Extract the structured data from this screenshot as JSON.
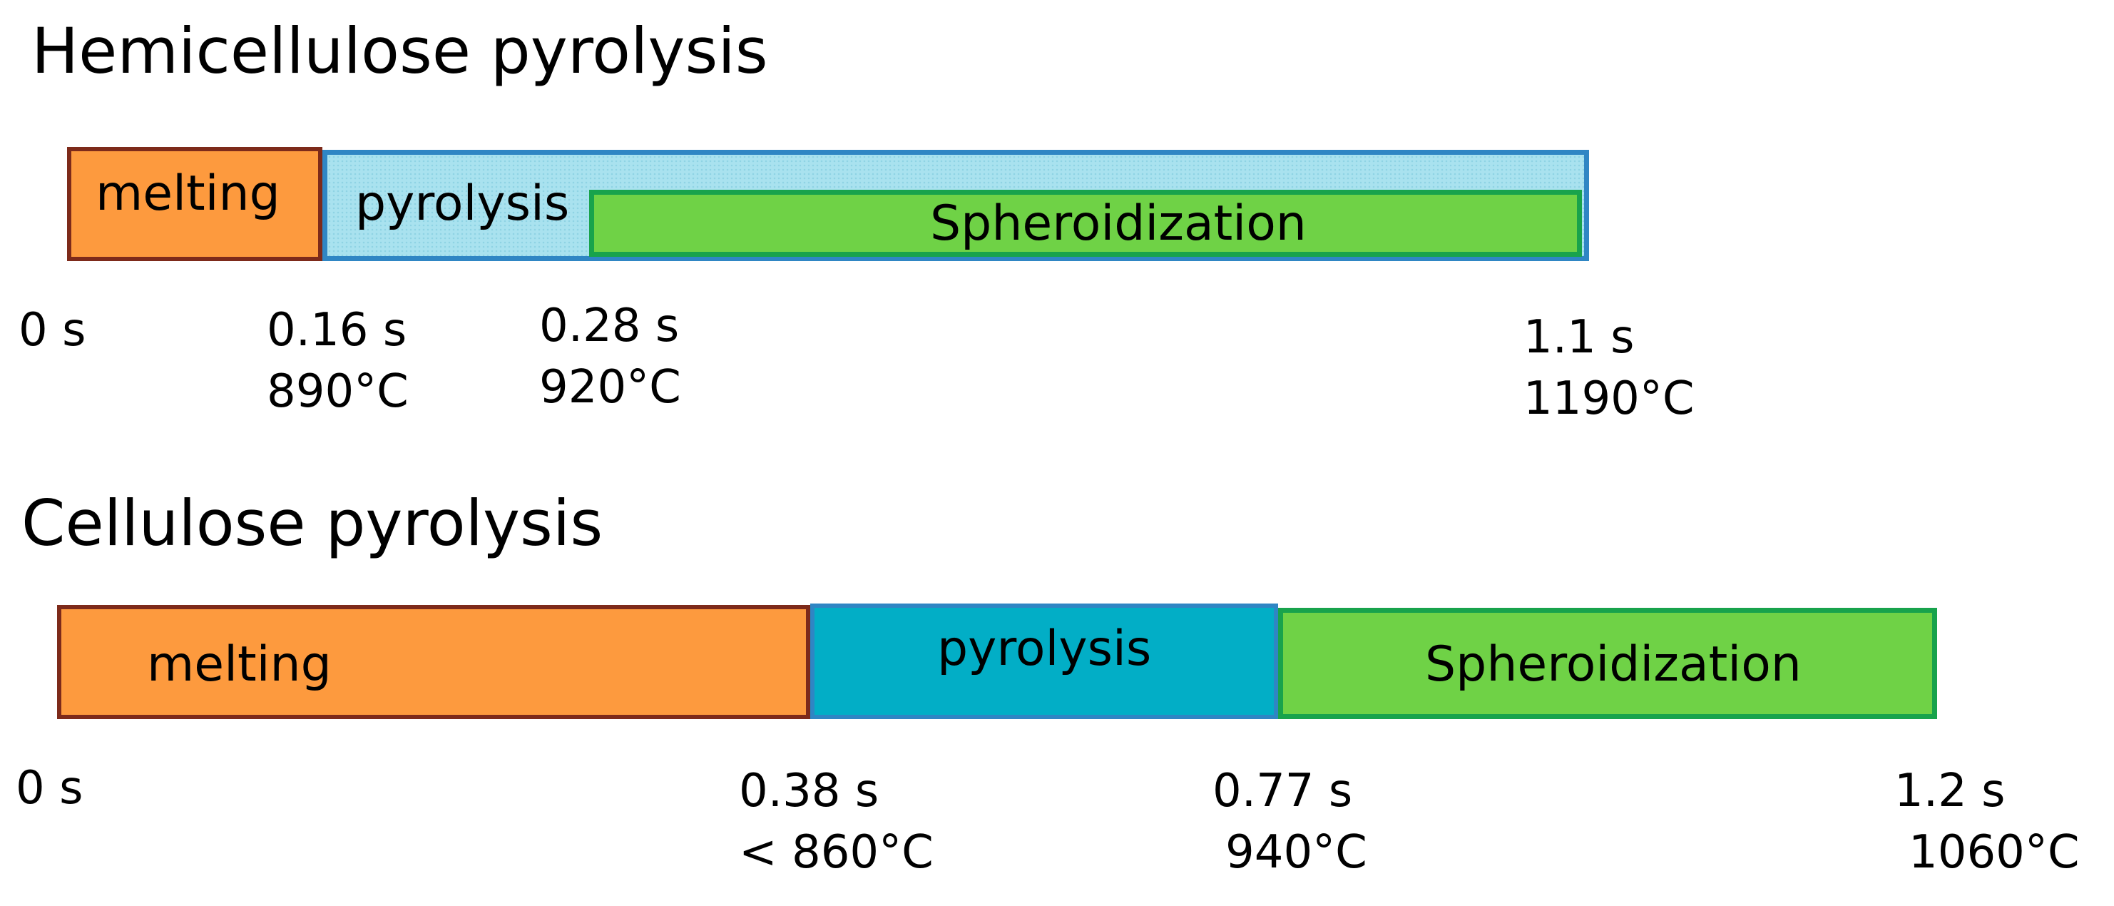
{
  "hemicellulose": {
    "title": "Hemicellulose pyrolysis",
    "phases": {
      "melting": "melting",
      "pyrolysis": "pyrolysis",
      "spheroidization": "Spheroidization"
    },
    "ticks": [
      {
        "time": "0 s",
        "temp": ""
      },
      {
        "time": "0.16 s",
        "temp": "890°C"
      },
      {
        "time": "0.28 s",
        "temp": "920°C"
      },
      {
        "time": "1.1 s",
        "temp": "1190°C"
      }
    ]
  },
  "cellulose": {
    "title": "Cellulose pyrolysis",
    "phases": {
      "melting": "melting",
      "pyrolysis": "pyrolysis",
      "spheroidization": "Spheroidization"
    },
    "ticks": [
      {
        "time": "0 s",
        "temp": ""
      },
      {
        "time": "0.38 s",
        "temp": "< 860°C"
      },
      {
        "time": "0.77 s",
        "temp": "940°C"
      },
      {
        "time": "1.2 s",
        "temp": "1060°C"
      }
    ]
  },
  "colors": {
    "melting_fill": "#fd9a3e",
    "melting_border": "#7d2a1a",
    "pyrolysis_hemi_fill": "#a9e2ef",
    "pyrolysis_cell_fill": "#02aec6",
    "pyrolysis_border": "#2f86c4",
    "spheroidization_fill": "#6fd246",
    "spheroidization_border": "#18a34c"
  }
}
